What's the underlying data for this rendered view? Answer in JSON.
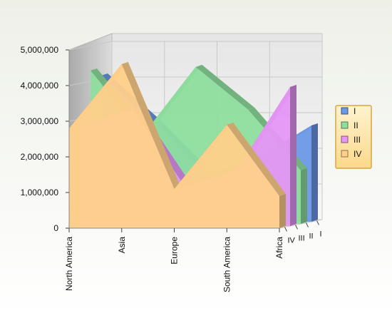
{
  "chart_data": {
    "type": "area",
    "title": "",
    "xlabel": "",
    "ylabel": "",
    "categories": [
      "North America",
      "Asia",
      "Europe",
      "South America",
      "Africa"
    ],
    "ylim": [
      0,
      5000000
    ],
    "yticks": [
      0,
      1000000,
      2000000,
      3000000,
      4000000,
      5000000
    ],
    "ytick_labels": [
      "0",
      "1,000,000",
      "2,000,000",
      "3,000,000",
      "4,000,000",
      "5,000,000"
    ],
    "grid": true,
    "projection": "3d-depth",
    "legend_position": "right",
    "series": [
      {
        "name": "I",
        "color": "#6c98e6",
        "values": [
          4100000,
          2800000,
          1300000,
          1800000,
          2700000
        ]
      },
      {
        "name": "II",
        "color": "#8ede9e",
        "values": [
          4300000,
          2500000,
          4400000,
          3200000,
          1500000
        ]
      },
      {
        "name": "III",
        "color": "#e596f6",
        "values": [
          2800000,
          3300000,
          1100000,
          1600000,
          3900000
        ]
      },
      {
        "name": "IV",
        "color": "#ffd08a",
        "values": [
          2800000,
          4600000,
          1100000,
          2900000,
          900000
        ]
      }
    ]
  }
}
